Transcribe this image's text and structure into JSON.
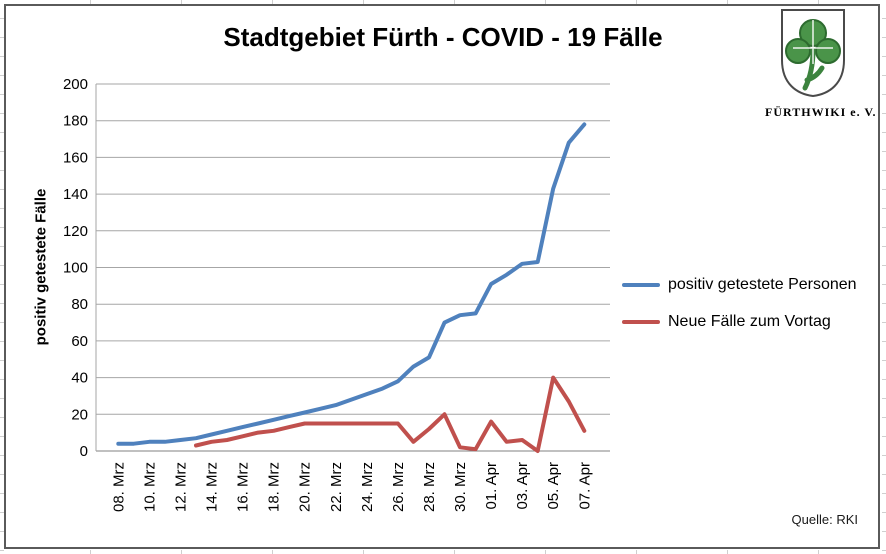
{
  "title": "Stadtgebiet Fürth - COVID - 19 Fälle",
  "logo": {
    "org_name": "FÜRTHWIKI e. V."
  },
  "source_note": "Quelle: RKI",
  "chart_data": {
    "type": "line",
    "title": "Stadtgebiet Fürth - COVID - 19 Fälle",
    "xlabel": "",
    "ylabel": "positiv getestete Fälle",
    "ylim": [
      0,
      200
    ],
    "y_ticks": [
      0,
      20,
      40,
      60,
      80,
      100,
      120,
      140,
      160,
      180,
      200
    ],
    "x_tick_labels": [
      "08. Mrz",
      "10. Mrz",
      "12. Mrz",
      "14. Mrz",
      "16. Mrz",
      "18. Mrz",
      "20. Mrz",
      "22. Mrz",
      "24. Mrz",
      "26. Mrz",
      "28. Mrz",
      "30. Mrz",
      "01. Apr",
      "03. Apr",
      "05. Apr",
      "07. Apr"
    ],
    "x_tick_days": [
      0,
      2,
      4,
      6,
      8,
      10,
      12,
      14,
      16,
      18,
      20,
      22,
      24,
      26,
      28,
      30
    ],
    "x_range_days": 31,
    "grid": "horizontal",
    "grid_color": "#A6A6A6",
    "legend_position": "right",
    "series": [
      {
        "name": "positiv getestete Personen",
        "color": "#4F81BD",
        "start_day": 0,
        "values": [
          4,
          4,
          5,
          5,
          6,
          7,
          9,
          11,
          13,
          15,
          17,
          19,
          21,
          23,
          25,
          28,
          31,
          34,
          38,
          46,
          51,
          70,
          74,
          75,
          91,
          96,
          102,
          103,
          143,
          168,
          178
        ]
      },
      {
        "name": "Neue Fälle zum Vortag",
        "color": "#C0504D",
        "start_day": 5,
        "values": [
          3,
          5,
          6,
          8,
          10,
          11,
          13,
          15,
          15,
          15,
          15,
          15,
          15,
          15,
          5,
          12,
          20,
          2,
          1,
          16,
          5,
          6,
          0,
          40,
          27,
          11
        ]
      }
    ]
  }
}
